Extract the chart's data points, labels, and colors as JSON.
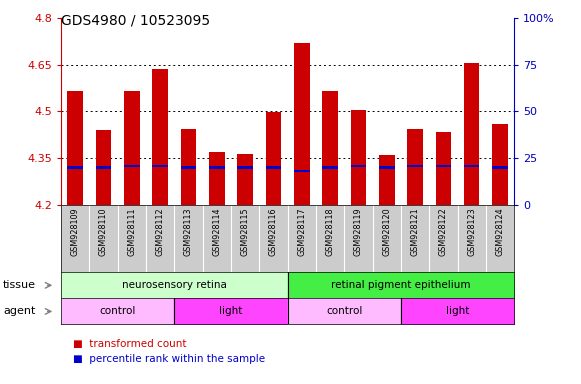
{
  "title": "GDS4980 / 10523095",
  "samples": [
    "GSM928109",
    "GSM928110",
    "GSM928111",
    "GSM928112",
    "GSM928113",
    "GSM928114",
    "GSM928115",
    "GSM928116",
    "GSM928117",
    "GSM928118",
    "GSM928119",
    "GSM928120",
    "GSM928121",
    "GSM928122",
    "GSM928123",
    "GSM928124"
  ],
  "transformed_count": [
    4.565,
    4.44,
    4.565,
    4.635,
    4.445,
    4.37,
    4.363,
    4.498,
    4.72,
    4.565,
    4.505,
    4.36,
    4.445,
    4.435,
    4.655,
    4.46
  ],
  "percentile_rank": [
    20,
    20,
    21,
    21,
    20,
    20,
    20,
    20,
    18,
    20,
    21,
    20,
    21,
    21,
    21,
    20
  ],
  "y_min": 4.2,
  "y_max": 4.8,
  "y_ticks": [
    4.2,
    4.35,
    4.5,
    4.65,
    4.8
  ],
  "right_y_ticks": [
    0,
    25,
    50,
    75,
    100
  ],
  "right_y_labels": [
    "0",
    "25",
    "50",
    "75",
    "100%"
  ],
  "bar_color": "#cc0000",
  "percentile_color": "#0000cc",
  "bar_width": 0.55,
  "tissue_groups": [
    {
      "label": "neurosensory retina",
      "start": 0,
      "end": 7,
      "color": "#ccffcc"
    },
    {
      "label": "retinal pigment epithelium",
      "start": 8,
      "end": 15,
      "color": "#44ee44"
    }
  ],
  "agent_groups": [
    {
      "label": "control",
      "start": 0,
      "end": 3,
      "color": "#ffbbff"
    },
    {
      "label": "light",
      "start": 4,
      "end": 7,
      "color": "#ff44ff"
    },
    {
      "label": "control",
      "start": 8,
      "end": 11,
      "color": "#ffbbff"
    },
    {
      "label": "light",
      "start": 12,
      "end": 15,
      "color": "#ff44ff"
    }
  ],
  "legend_items": [
    {
      "label": "transformed count",
      "color": "#cc0000"
    },
    {
      "label": "percentile rank within the sample",
      "color": "#0000cc"
    }
  ],
  "left_tick_color": "#cc0000",
  "right_tick_color": "#0000bb",
  "background_color": "#ffffff",
  "sample_box_color": "#cccccc",
  "grid_dotted_color": "black"
}
